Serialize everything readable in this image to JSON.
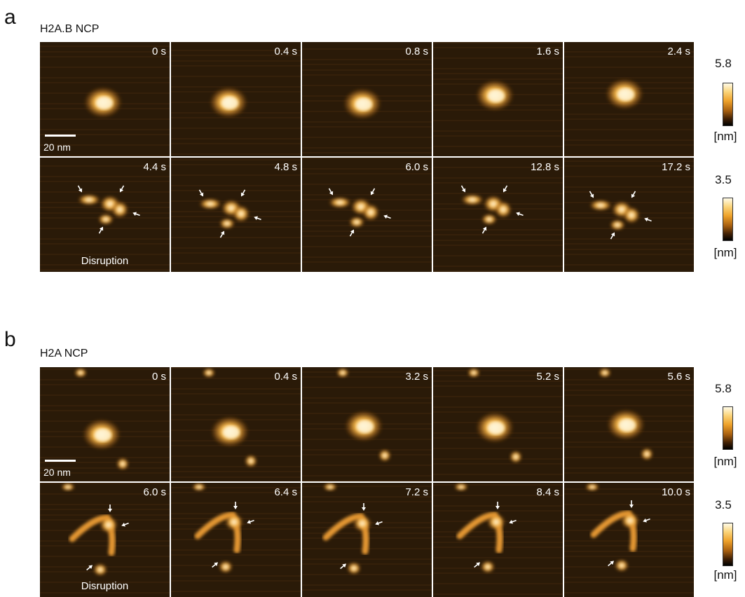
{
  "panels": [
    {
      "letter": "a",
      "title": "H2A.B NCP",
      "row1_times": [
        "0 s",
        "0.4 s",
        "0.8 s",
        "1.6 s",
        "2.4 s"
      ],
      "row2_times": [
        "4.4 s",
        "4.8 s",
        "6.0 s",
        "12.8 s",
        "17.2 s"
      ],
      "scalebar_label": "20 nm",
      "disruption_label": "Disruption",
      "colorbars": [
        {
          "max": "5.8",
          "unit": "[nm]"
        },
        {
          "max": "3.5",
          "unit": "[nm]"
        }
      ]
    },
    {
      "letter": "b",
      "title": "H2A NCP",
      "row1_times": [
        "0 s",
        "0.4 s",
        "3.2 s",
        "5.2 s",
        "5.6 s"
      ],
      "row2_times": [
        "6.0 s",
        "6.4 s",
        "7.2 s",
        "8.4 s",
        "10.0 s"
      ],
      "scalebar_label": "20 nm",
      "disruption_label": "Disruption",
      "colorbars": [
        {
          "max": "5.8",
          "unit": "[nm]"
        },
        {
          "max": "3.5",
          "unit": "[nm]"
        }
      ]
    }
  ],
  "colors": {
    "background_dark": "#1c1206",
    "particle_bright": "#fff3c4",
    "particle_mid": "#f0a830",
    "separator": "#ffffff"
  }
}
